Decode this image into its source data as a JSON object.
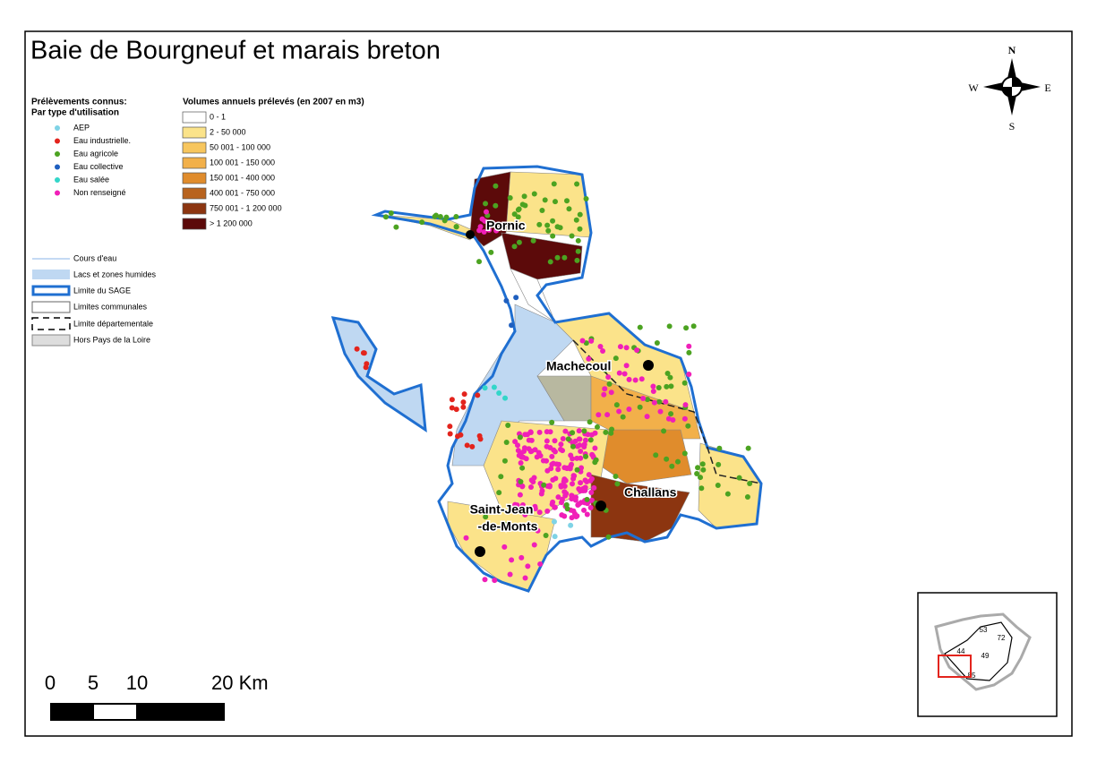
{
  "title": "Baie de Bourgneuf et marais breton",
  "compass": {
    "north": "N",
    "west": "W",
    "east": "E",
    "south": "S"
  },
  "points_legend": {
    "title": "Prélèvements connus:",
    "subtitle": "Par type d'utilisation",
    "items": [
      {
        "label": "AEP",
        "color": "#7fd3e6"
      },
      {
        "label": "Eau industrielle.",
        "color": "#e3241d"
      },
      {
        "label": "Eau agricole",
        "color": "#4ca321"
      },
      {
        "label": "Eau collective",
        "color": "#1f5fbf"
      },
      {
        "label": "Eau salée",
        "color": "#33d6c9"
      },
      {
        "label": "Non renseigné",
        "color": "#f01fb8"
      }
    ]
  },
  "volumes_legend": {
    "title": "Volumes annuels prélevés (en 2007 en m3)",
    "items": [
      {
        "label": "0 - 1",
        "color": "#ffffff"
      },
      {
        "label": "2 - 50 000",
        "color": "#fbe38a"
      },
      {
        "label": "50 001 - 100 000",
        "color": "#f7c65e"
      },
      {
        "label": "100 001 - 150 000",
        "color": "#f2b04a"
      },
      {
        "label": "150 001 - 400 000",
        "color": "#e08c2c"
      },
      {
        "label": "400 001 - 750 000",
        "color": "#b8631e"
      },
      {
        "label": "750 001 - 1 200 000",
        "color": "#8c3510"
      },
      {
        "label": "> 1 200 000",
        "color": "#5c0a0a"
      }
    ]
  },
  "layers_legend": {
    "items": [
      "Cours d'eau",
      "Lacs et zones humides",
      "Limite du SAGE",
      "Limites communales",
      "Limite départementale",
      "Hors Pays de la Loire"
    ]
  },
  "cities": [
    [
      "Pornic"
    ],
    [
      "Machecoul"
    ],
    [
      "Challans"
    ],
    [
      "Saint-Jean",
      "-de-Monts"
    ]
  ],
  "scale_bar": {
    "labels": [
      "0",
      "5",
      "10",
      "20 Km"
    ]
  },
  "inset": {
    "labels": [
      "53",
      "72",
      "44",
      "49",
      "85"
    ]
  }
}
